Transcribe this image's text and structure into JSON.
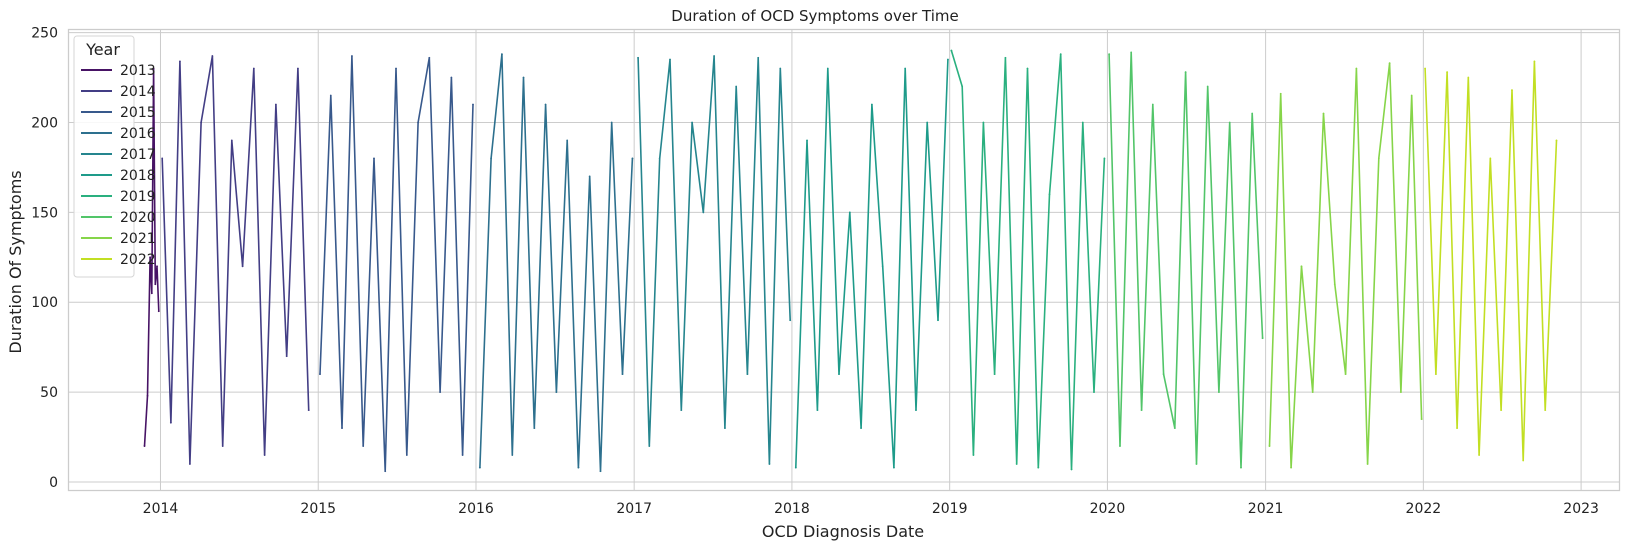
{
  "chart_data": {
    "type": "line",
    "title": "Duration of OCD Symptoms over Time",
    "xlabel": "OCD Diagnosis Date",
    "ylabel": "Duration Of Symptoms",
    "xlim": [
      "2013-06-01",
      "2023-04-01"
    ],
    "ylim": [
      -5,
      252
    ],
    "x_ticks": [
      {
        "label": "2014",
        "date": "2014-01-01"
      },
      {
        "label": "2015",
        "date": "2015-01-01"
      },
      {
        "label": "2016",
        "date": "2016-01-01"
      },
      {
        "label": "2017",
        "date": "2017-01-01"
      },
      {
        "label": "2018",
        "date": "2018-01-01"
      },
      {
        "label": "2019",
        "date": "2019-01-01"
      },
      {
        "label": "2020",
        "date": "2020-01-01"
      },
      {
        "label": "2021",
        "date": "2021-01-01"
      },
      {
        "label": "2022",
        "date": "2022-01-01"
      },
      {
        "label": "2023",
        "date": "2023-01-01"
      }
    ],
    "y_ticks": [
      0,
      50,
      100,
      150,
      200,
      250
    ],
    "grid": true,
    "legend": {
      "title": "Year",
      "position": "top-left"
    },
    "series": [
      {
        "name": "2013",
        "color": "#471365",
        "x": [
          "2013-11-25",
          "2013-12-02",
          "2013-12-08",
          "2013-12-12",
          "2013-12-16",
          "2013-12-20",
          "2013-12-24",
          "2013-12-28"
        ],
        "y": [
          20,
          48,
          125,
          105,
          230,
          110,
          120,
          95
        ]
      },
      {
        "name": "2014",
        "color": "#433e85",
        "x": [
          "2014-01-05",
          "2014-01-25",
          "2014-02-15",
          "2014-03-10",
          "2014-04-05",
          "2014-05-01",
          "2014-05-25",
          "2014-06-15",
          "2014-07-10",
          "2014-08-05",
          "2014-08-30",
          "2014-09-25",
          "2014-10-20",
          "2014-11-15",
          "2014-12-10"
        ],
        "y": [
          180,
          33,
          234,
          10,
          200,
          237,
          20,
          190,
          120,
          230,
          15,
          210,
          70,
          230,
          40
        ]
      },
      {
        "name": "2015",
        "color": "#38598c",
        "x": [
          "2015-01-05",
          "2015-01-30",
          "2015-02-25",
          "2015-03-20",
          "2015-04-15",
          "2015-05-10",
          "2015-06-05",
          "2015-06-30",
          "2015-07-25",
          "2015-08-20",
          "2015-09-15",
          "2015-10-10",
          "2015-11-05",
          "2015-12-01",
          "2015-12-25"
        ],
        "y": [
          60,
          215,
          30,
          237,
          20,
          180,
          6,
          230,
          15,
          200,
          236,
          50,
          225,
          15,
          210
        ]
      },
      {
        "name": "2016",
        "color": "#2d708e",
        "x": [
          "2016-01-10",
          "2016-02-05",
          "2016-03-01",
          "2016-03-25",
          "2016-04-20",
          "2016-05-15",
          "2016-06-10",
          "2016-07-05",
          "2016-07-30",
          "2016-08-25",
          "2016-09-20",
          "2016-10-15",
          "2016-11-10",
          "2016-12-05",
          "2016-12-28"
        ],
        "y": [
          8,
          180,
          238,
          15,
          225,
          30,
          210,
          50,
          190,
          8,
          170,
          6,
          200,
          60,
          180
        ]
      },
      {
        "name": "2017",
        "color": "#25858e",
        "x": [
          "2017-01-10",
          "2017-02-05",
          "2017-03-01",
          "2017-03-25",
          "2017-04-20",
          "2017-05-15",
          "2017-06-10",
          "2017-07-05",
          "2017-07-30",
          "2017-08-25",
          "2017-09-20",
          "2017-10-15",
          "2017-11-10",
          "2017-12-05",
          "2017-12-28"
        ],
        "y": [
          236,
          20,
          180,
          235,
          40,
          200,
          150,
          237,
          30,
          220,
          60,
          236,
          10,
          230,
          90
        ]
      },
      {
        "name": "2018",
        "color": "#1e9b8a",
        "x": [
          "2018-01-10",
          "2018-02-05",
          "2018-03-01",
          "2018-03-25",
          "2018-04-20",
          "2018-05-15",
          "2018-06-10",
          "2018-07-05",
          "2018-07-30",
          "2018-08-25",
          "2018-09-20",
          "2018-10-15",
          "2018-11-10",
          "2018-12-05",
          "2018-12-28"
        ],
        "y": [
          8,
          190,
          40,
          230,
          60,
          150,
          30,
          210,
          120,
          8,
          230,
          40,
          200,
          90,
          235
        ]
      },
      {
        "name": "2019",
        "color": "#2ab07f",
        "x": [
          "2019-01-05",
          "2019-01-30",
          "2019-02-25",
          "2019-03-20",
          "2019-04-15",
          "2019-05-10",
          "2019-06-05",
          "2019-06-30",
          "2019-07-25",
          "2019-08-20",
          "2019-09-15",
          "2019-10-10",
          "2019-11-05",
          "2019-12-01",
          "2019-12-25"
        ],
        "y": [
          240,
          220,
          15,
          200,
          60,
          236,
          10,
          230,
          8,
          160,
          238,
          7,
          200,
          50,
          180
        ]
      },
      {
        "name": "2020",
        "color": "#52c569",
        "x": [
          "2020-01-05",
          "2020-01-30",
          "2020-02-25",
          "2020-03-20",
          "2020-04-15",
          "2020-05-10",
          "2020-06-05",
          "2020-06-30",
          "2020-07-25",
          "2020-08-20",
          "2020-09-15",
          "2020-10-10",
          "2020-11-05",
          "2020-12-01",
          "2020-12-25"
        ],
        "y": [
          238,
          20,
          239,
          40,
          210,
          60,
          30,
          228,
          10,
          220,
          50,
          200,
          8,
          205,
          80
        ]
      },
      {
        "name": "2021",
        "color": "#86d549",
        "x": [
          "2021-01-10",
          "2021-02-05",
          "2021-03-01",
          "2021-03-25",
          "2021-04-20",
          "2021-05-15",
          "2021-06-10",
          "2021-07-05",
          "2021-07-30",
          "2021-08-25",
          "2021-09-20",
          "2021-10-15",
          "2021-11-10",
          "2021-12-05",
          "2021-12-28"
        ],
        "y": [
          20,
          216,
          8,
          120,
          50,
          205,
          110,
          60,
          230,
          10,
          180,
          233,
          50,
          215,
          35
        ]
      },
      {
        "name": "2022",
        "color": "#c2df23",
        "x": [
          "2022-01-05",
          "2022-01-30",
          "2022-02-25",
          "2022-03-20",
          "2022-04-15",
          "2022-05-10",
          "2022-06-05",
          "2022-06-30",
          "2022-07-25",
          "2022-08-20",
          "2022-09-15",
          "2022-10-10",
          "2022-11-05"
        ],
        "y": [
          230,
          60,
          228,
          30,
          225,
          15,
          180,
          40,
          218,
          12,
          234,
          40,
          190
        ]
      }
    ]
  }
}
